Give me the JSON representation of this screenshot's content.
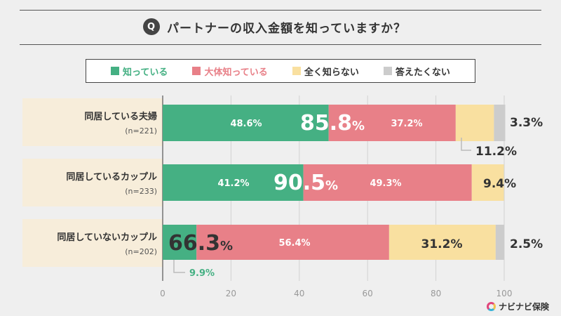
{
  "question": {
    "icon_label": "Q",
    "text": "パートナーの収入金額を知っていますか？"
  },
  "legend": [
    {
      "label": "知っている",
      "color": "#45b083",
      "text_color": "#45b083"
    },
    {
      "label": "大体知っている",
      "color": "#e88088",
      "text_color": "#e88088"
    },
    {
      "label": "全く知らない",
      "color": "#f9e0a0",
      "text_color": "#333333"
    },
    {
      "label": "答えたくない",
      "color": "#cccccc",
      "text_color": "#333333"
    }
  ],
  "chart_data": {
    "type": "bar",
    "orientation": "horizontal",
    "stacked": true,
    "title": "パートナーの収入金額を知っていますか？",
    "categories": [
      "同居している夫婦",
      "同居しているカップル",
      "同居していないカップル"
    ],
    "sample_sizes": [
      "(n=221)",
      "(n=233)",
      "(n=202)"
    ],
    "series": [
      {
        "name": "知っている",
        "color": "#45b083",
        "values": [
          48.6,
          41.2,
          9.9
        ],
        "labels": [
          "48.6%",
          "41.2%",
          "9.9%"
        ]
      },
      {
        "name": "大体知っている",
        "color": "#e88088",
        "values": [
          37.2,
          49.3,
          56.4
        ],
        "labels": [
          "37.2%",
          "49.3%",
          "56.4%"
        ]
      },
      {
        "name": "全く知らない",
        "color": "#f9e0a0",
        "values": [
          11.2,
          9.4,
          31.2
        ],
        "labels": [
          "11.2%",
          "9.4%",
          "31.2%"
        ]
      },
      {
        "name": "答えたくない",
        "color": "#cccccc",
        "values": [
          3.3,
          0.0,
          2.5
        ],
        "labels": [
          "3.3%",
          "",
          "2.5%"
        ]
      }
    ],
    "totals": [
      {
        "number": "85.8",
        "unit": "%"
      },
      {
        "number": "90.5",
        "unit": "%"
      },
      {
        "number": "66.3",
        "unit": "%"
      }
    ],
    "xlim": [
      0,
      100
    ],
    "xticks": [
      "0",
      "20",
      "40",
      "60",
      "80",
      "100"
    ],
    "grid": true
  },
  "brand": {
    "name": "ナビナビ保険"
  }
}
